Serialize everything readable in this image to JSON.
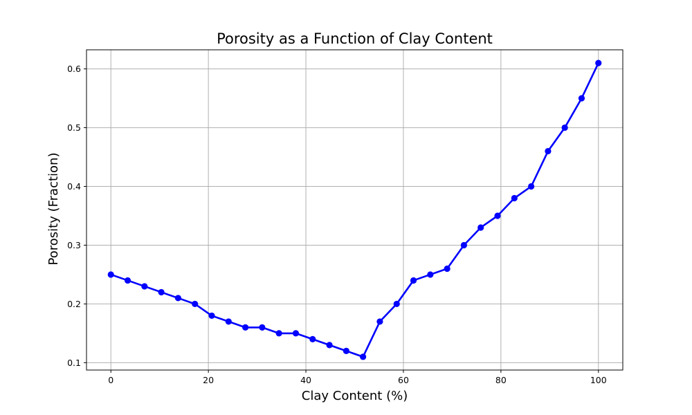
{
  "chart_data": {
    "type": "line",
    "title": "Porosity as a Function of Clay Content",
    "xlabel": "Clay Content (%)",
    "ylabel": "Porosity (Fraction)",
    "xlim": [
      -5,
      105
    ],
    "ylim": [
      0.0875,
      0.6325
    ],
    "xticks": [
      0,
      20,
      40,
      60,
      80,
      100
    ],
    "yticks": [
      0.1,
      0.2,
      0.3,
      0.4,
      0.5,
      0.6
    ],
    "xtick_labels": [
      "0",
      "20",
      "40",
      "60",
      "80",
      "100"
    ],
    "ytick_labels": [
      "0.1",
      "0.2",
      "0.3",
      "0.4",
      "0.5",
      "0.6"
    ],
    "grid": true,
    "legend": "none",
    "series": [
      {
        "color": "#0000ff",
        "marker": "circle",
        "x": [
          0,
          3.45,
          6.9,
          10.34,
          13.79,
          17.24,
          20.69,
          24.14,
          27.59,
          31.03,
          34.48,
          37.93,
          41.38,
          44.83,
          48.28,
          51.72,
          55.17,
          58.62,
          62.07,
          65.52,
          68.97,
          72.41,
          75.86,
          79.31,
          82.76,
          86.21,
          89.66,
          93.1,
          96.55,
          100
        ],
        "y": [
          0.25,
          0.24,
          0.23,
          0.22,
          0.21,
          0.2,
          0.18,
          0.17,
          0.16,
          0.16,
          0.15,
          0.15,
          0.14,
          0.13,
          0.12,
          0.11,
          0.17,
          0.2,
          0.24,
          0.25,
          0.26,
          0.3,
          0.33,
          0.35,
          0.38,
          0.4,
          0.46,
          0.5,
          0.55,
          0.61
        ]
      }
    ]
  }
}
